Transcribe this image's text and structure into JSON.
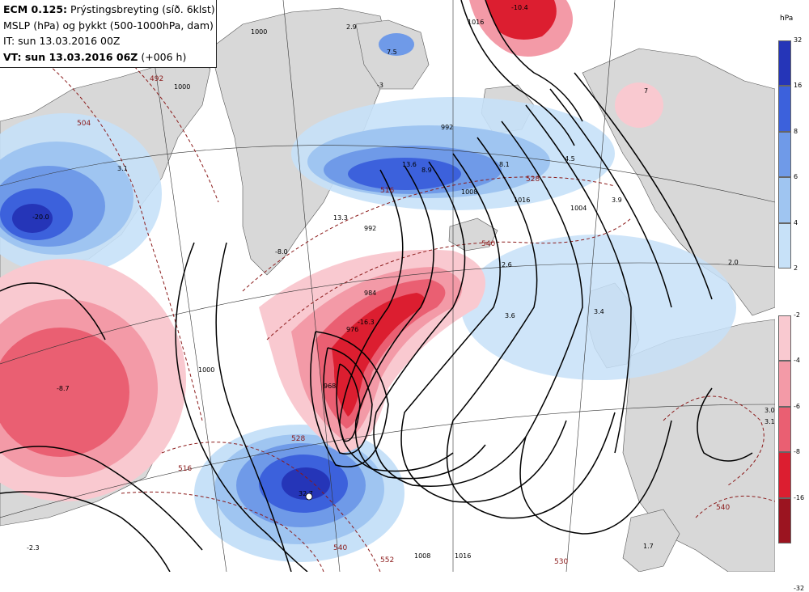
{
  "header": {
    "model": "ECM 0.125:",
    "title": "Prýstingsbreyting (síð. 6klst)",
    "line2": "MSLP (hPa) og þykkt (500-1000hPa, dam)",
    "line3": "IT: sun 13.03.2016 00Z",
    "line4_bold": "VT: sun 13.03.2016 06Z",
    "line4_rest": "(+006 h)"
  },
  "legend": {
    "unit": "hPa",
    "positive_ticks": [
      "32",
      "16",
      "8",
      "6",
      "4",
      "2"
    ],
    "negative_ticks": [
      "-2",
      "-4",
      "-6",
      "-8",
      "-16",
      "-32"
    ],
    "positive_colors": [
      "#2535b8",
      "#3c61dc",
      "#6f9ae8",
      "#9fc5f1",
      "#c7e1f8"
    ],
    "negative_colors": [
      "#f9c9d0",
      "#f39aa7",
      "#ea5f72",
      "#dc1e30",
      "#9b1420"
    ]
  },
  "map": {
    "colors": {
      "land": "#d8d8d8",
      "sea": "#ffffff",
      "isobar": "#000000",
      "thickness": "#8b1a1a"
    },
    "isobar_labels": [
      "1000",
      "1008",
      "992",
      "984",
      "976",
      "968",
      "1008",
      "1016",
      "1004",
      "1016",
      "992",
      "1000",
      "1016",
      "1000"
    ],
    "thickness_labels": [
      "492",
      "504",
      "516",
      "528",
      "540",
      "516",
      "528",
      "540",
      "552",
      "540",
      "530"
    ],
    "value_labels": [
      "-10.4",
      "2.9",
      "7.5",
      "-3",
      "3.1",
      "-20.0",
      "13.6",
      "8.9",
      "8.1",
      "4.5",
      "3.9",
      "7",
      "13.3",
      "-8.0",
      "2.6",
      "3.6",
      "3.4",
      "2.0",
      "-16.3",
      "-8.7",
      "32.7",
      "-2.3",
      "3.0",
      "3.1",
      "1.7"
    ]
  }
}
